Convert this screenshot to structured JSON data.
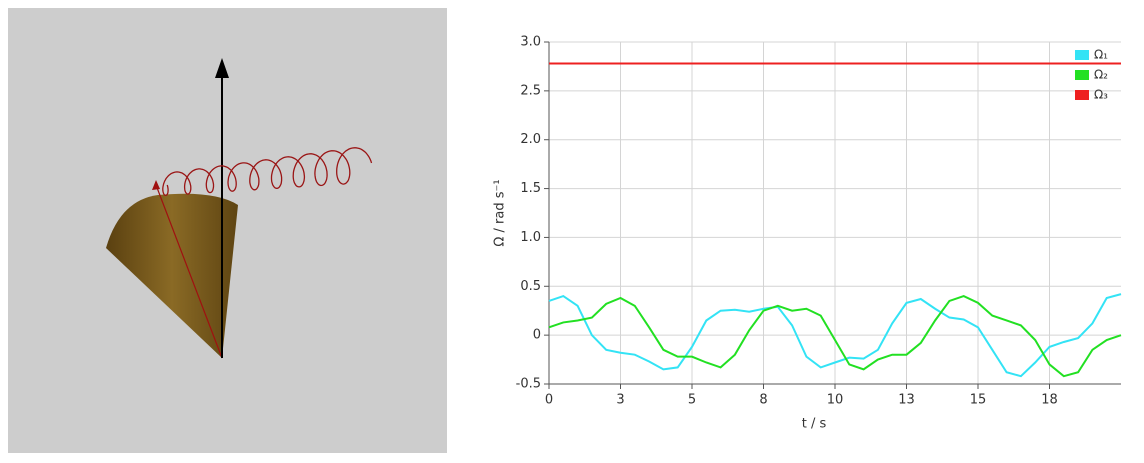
{
  "chart_data": {
    "type": "line",
    "x_label": "t / s",
    "y_label": "Ω / rad s⁻¹",
    "x": [
      0,
      0.5,
      1,
      1.5,
      2,
      2.5,
      3,
      3.5,
      4,
      4.5,
      5,
      5.5,
      6,
      6.5,
      7,
      7.5,
      8,
      8.5,
      9,
      9.5,
      10,
      10.5,
      11,
      11.5,
      12,
      12.5,
      13,
      13.5,
      14,
      14.5,
      15,
      15.5,
      16,
      16.5,
      17,
      17.5,
      18,
      18.5,
      19,
      19.5,
      20
    ],
    "series": [
      {
        "name": "Ω₁",
        "color": "#33e3f5",
        "values": [
          0.35,
          0.4,
          0.3,
          0.0,
          -0.15,
          -0.18,
          -0.2,
          -0.27,
          -0.35,
          -0.33,
          -0.12,
          0.15,
          0.25,
          0.26,
          0.24,
          0.27,
          0.29,
          0.1,
          -0.22,
          -0.33,
          -0.28,
          -0.23,
          -0.24,
          -0.15,
          0.12,
          0.33,
          0.37,
          0.27,
          0.18,
          0.16,
          0.08,
          -0.15,
          -0.38,
          -0.42,
          -0.28,
          -0.12,
          -0.07,
          -0.03,
          0.12,
          0.38,
          0.42
        ]
      },
      {
        "name": "Ω₂",
        "color": "#22e022",
        "values": [
          0.08,
          0.13,
          0.15,
          0.18,
          0.32,
          0.38,
          0.3,
          0.08,
          -0.15,
          -0.22,
          -0.22,
          -0.28,
          -0.33,
          -0.2,
          0.05,
          0.25,
          0.3,
          0.25,
          0.27,
          0.2,
          -0.05,
          -0.3,
          -0.35,
          -0.25,
          -0.2,
          -0.2,
          -0.08,
          0.15,
          0.35,
          0.4,
          0.33,
          0.2,
          0.15,
          0.1,
          -0.05,
          -0.3,
          -0.42,
          -0.38,
          -0.15,
          -0.05,
          0.0
        ]
      },
      {
        "name": "Ω₃",
        "color": "#ee2020",
        "values": [
          2.78,
          2.78,
          2.78,
          2.78,
          2.78,
          2.78,
          2.78,
          2.78,
          2.78,
          2.78,
          2.78,
          2.78,
          2.78,
          2.78,
          2.78,
          2.78,
          2.78,
          2.78,
          2.78,
          2.78,
          2.78,
          2.78,
          2.78,
          2.78,
          2.78,
          2.78,
          2.78,
          2.78,
          2.78,
          2.78,
          2.78,
          2.78,
          2.78,
          2.78,
          2.78,
          2.78,
          2.78,
          2.78,
          2.78,
          2.78,
          2.78
        ]
      }
    ],
    "xlim": [
      0,
      20
    ],
    "ylim": [
      -0.5,
      3
    ],
    "xticks": [
      0,
      {
        "value": 2.5,
        "label": "3"
      },
      5,
      {
        "value": 7.5,
        "label": "8"
      },
      10,
      {
        "value": 12.5,
        "label": "13"
      },
      15,
      {
        "value": 17.5,
        "label": "18"
      }
    ],
    "yticks": [
      -0.5,
      0,
      0.5,
      {
        "value": 1,
        "label": "1.0"
      },
      1.5,
      {
        "value": 2,
        "label": "2.0"
      },
      2.5,
      {
        "value": 3,
        "label": "3.0"
      }
    ],
    "grid": true,
    "legend": "top-right"
  }
}
